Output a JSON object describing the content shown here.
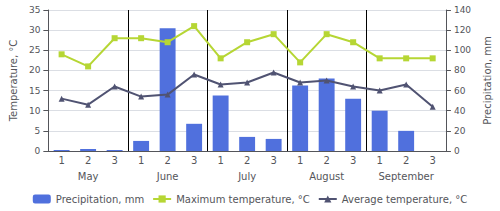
{
  "chart_data": {
    "type": "bar",
    "categories": [
      "1",
      "2",
      "3",
      "1",
      "2",
      "3",
      "1",
      "2",
      "3",
      "1",
      "2",
      "3",
      "1",
      "2",
      "3"
    ],
    "groups": [
      "May",
      "June",
      "July",
      "August",
      "September"
    ],
    "series": [
      {
        "name": "Precipitation, mm",
        "type": "bar",
        "axis": "y2",
        "values": [
          1,
          2,
          1,
          10,
          122,
          27,
          55,
          14,
          12,
          65,
          72,
          52,
          40,
          20,
          0
        ]
      },
      {
        "name": "Maximum temperature, °C",
        "type": "line",
        "marker": "square",
        "values": [
          24,
          21,
          28,
          28,
          27,
          31,
          23,
          27,
          29,
          22,
          29,
          27,
          23,
          23,
          23
        ]
      },
      {
        "name": "Average temperature, °C",
        "type": "line",
        "marker": "triangle",
        "values": [
          13,
          11.5,
          16,
          13.5,
          14,
          19,
          16.5,
          17,
          19.5,
          17,
          17.5,
          16,
          15,
          16.5,
          11
        ]
      }
    ],
    "ylabel": "Temperature, °C",
    "y2label": "Precipitation, mm",
    "ylim": [
      0,
      35
    ],
    "yticks": [
      0,
      5,
      10,
      15,
      20,
      25,
      30,
      35
    ],
    "y2lim": [
      0,
      140
    ],
    "y2ticks": [
      0,
      20,
      40,
      60,
      80,
      100,
      120,
      140
    ],
    "grid": true,
    "legend": "bottom"
  }
}
